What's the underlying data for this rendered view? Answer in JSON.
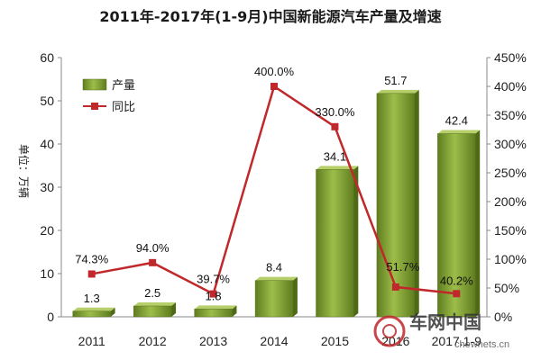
{
  "chart_data": {
    "type": "bar",
    "title": "2011年-2017年(1-9月)中国新能源汽车产量及增速",
    "ylabel": "单位：万辆",
    "categories": [
      "2011",
      "2012",
      "2013",
      "2014",
      "2015",
      "2016",
      "2017.1-9"
    ],
    "ylim": [
      0,
      60
    ],
    "yticks": [
      0,
      10,
      20,
      30,
      40,
      50,
      60
    ],
    "y2lim": [
      0,
      450
    ],
    "y2ticks": [
      "0%",
      "50%",
      "100%",
      "150%",
      "200%",
      "250%",
      "300%",
      "350%",
      "400%",
      "450%"
    ],
    "series": [
      {
        "name": "产量",
        "type": "bar",
        "axis": "left",
        "color": "#7a9a2e",
        "values": [
          1.3,
          2.5,
          1.8,
          8.4,
          34.1,
          51.7,
          42.4
        ],
        "labels": [
          "1.3",
          "2.5",
          "1.8",
          "8.4",
          "34.1",
          "51.7",
          "42.4"
        ]
      },
      {
        "name": "同比",
        "type": "line",
        "axis": "right",
        "color": "#c0282b",
        "values": [
          74.3,
          94.0,
          39.7,
          400.0,
          330.0,
          51.7,
          40.2
        ],
        "labels": [
          "74.3%",
          "94.0%",
          "39.7%",
          "400.0%",
          "330.0%",
          "51.7%",
          "40.2%"
        ]
      }
    ],
    "legend": "top-left",
    "grid": false
  },
  "watermark": {
    "text": "车网中国",
    "url": "chewnets.cn"
  }
}
